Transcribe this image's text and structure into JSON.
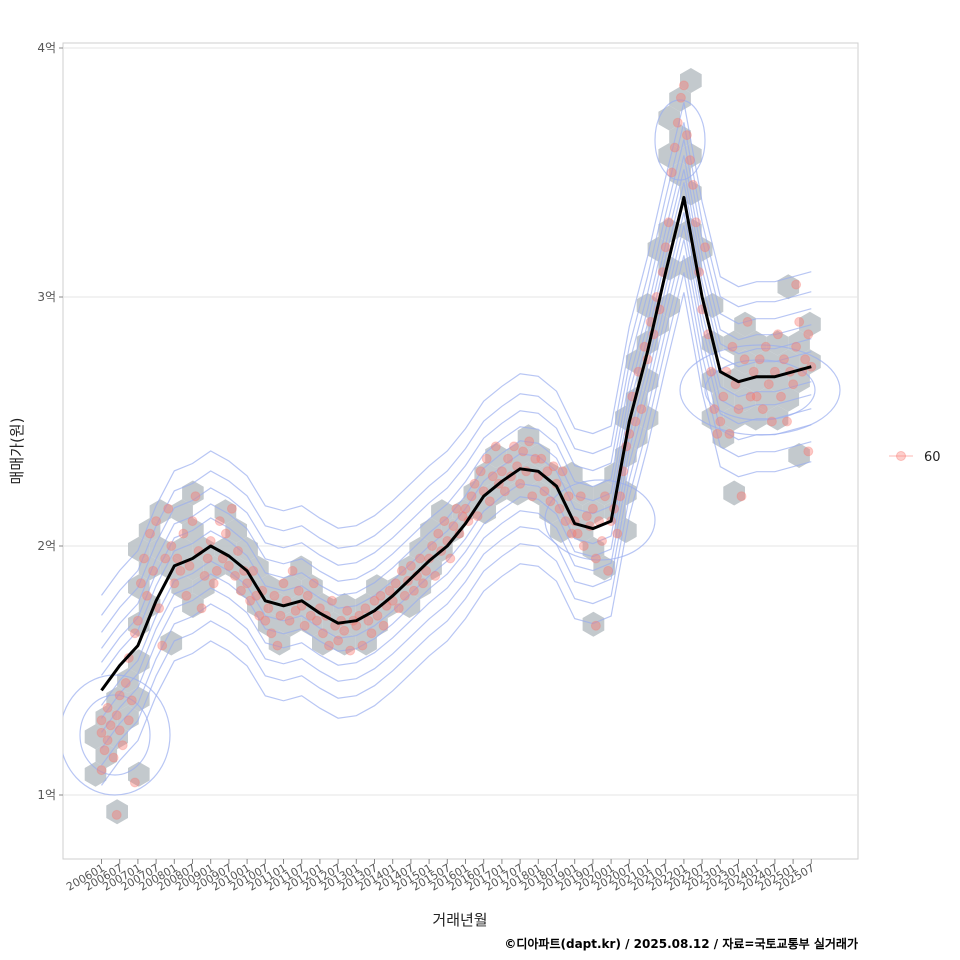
{
  "chart_data": {
    "type": "scatter",
    "xlabel": "거래년월",
    "ylabel": "매매가(원)",
    "caption": "©디아파트(dapt.kr) / 2025.08.12 / 자료=국토교통부 실거래가",
    "ylim": [
      0.75,
      4.05
    ],
    "y_ticks": [
      {
        "value": 1,
        "label": "1억"
      },
      {
        "value": 2,
        "label": "2억"
      },
      {
        "value": 3,
        "label": "3억"
      },
      {
        "value": 4,
        "label": "4억"
      }
    ],
    "x_ticks": [
      "200601",
      "200607",
      "200701",
      "200707",
      "200801",
      "200807",
      "200901",
      "200907",
      "201001",
      "201007",
      "201101",
      "201107",
      "201201",
      "201207",
      "201301",
      "201307",
      "201401",
      "201407",
      "201501",
      "201507",
      "201601",
      "201607",
      "201701",
      "201707",
      "201801",
      "201807",
      "201901",
      "201907",
      "202001",
      "202007",
      "202101",
      "202107",
      "202201",
      "202207",
      "202301",
      "202307",
      "202401",
      "202407",
      "202501",
      "202507"
    ],
    "legend": {
      "position": "right",
      "entries": [
        {
          "label": "60",
          "color": "#f8766d"
        }
      ]
    },
    "grid": true,
    "colors": {
      "points": "#f8766d",
      "hex": "#b8bfc4",
      "contour": "#9aaef0",
      "trend": "#000000"
    },
    "trend": [
      {
        "x": "200601",
        "y": 1.42
      },
      {
        "x": "200607",
        "y": 1.52
      },
      {
        "x": "200701",
        "y": 1.6
      },
      {
        "x": "200707",
        "y": 1.78
      },
      {
        "x": "200801",
        "y": 1.92
      },
      {
        "x": "200807",
        "y": 1.95
      },
      {
        "x": "200901",
        "y": 2.0
      },
      {
        "x": "200907",
        "y": 1.96
      },
      {
        "x": "201001",
        "y": 1.9
      },
      {
        "x": "201007",
        "y": 1.78
      },
      {
        "x": "201101",
        "y": 1.76
      },
      {
        "x": "201107",
        "y": 1.78
      },
      {
        "x": "201201",
        "y": 1.73
      },
      {
        "x": "201207",
        "y": 1.69
      },
      {
        "x": "201301",
        "y": 1.7
      },
      {
        "x": "201307",
        "y": 1.74
      },
      {
        "x": "201401",
        "y": 1.8
      },
      {
        "x": "201407",
        "y": 1.87
      },
      {
        "x": "201501",
        "y": 1.94
      },
      {
        "x": "201507",
        "y": 2.0
      },
      {
        "x": "201601",
        "y": 2.09
      },
      {
        "x": "201607",
        "y": 2.2
      },
      {
        "x": "201701",
        "y": 2.26
      },
      {
        "x": "201707",
        "y": 2.31
      },
      {
        "x": "201801",
        "y": 2.3
      },
      {
        "x": "201807",
        "y": 2.24
      },
      {
        "x": "201901",
        "y": 2.09
      },
      {
        "x": "201907",
        "y": 2.07
      },
      {
        "x": "202001",
        "y": 2.1
      },
      {
        "x": "202007",
        "y": 2.5
      },
      {
        "x": "202101",
        "y": 2.78
      },
      {
        "x": "202107",
        "y": 3.1
      },
      {
        "x": "202201",
        "y": 3.4
      },
      {
        "x": "202207",
        "y": 3.0
      },
      {
        "x": "202301",
        "y": 2.7
      },
      {
        "x": "202307",
        "y": 2.66
      },
      {
        "x": "202401",
        "y": 2.68
      },
      {
        "x": "202407",
        "y": 2.68
      },
      {
        "x": "202501",
        "y": 2.7
      },
      {
        "x": "202507",
        "y": 2.72
      }
    ],
    "points": [
      [
        "200601",
        1.1
      ],
      [
        "200601",
        1.25
      ],
      [
        "200601",
        1.3
      ],
      [
        "200602",
        1.18
      ],
      [
        "200603",
        1.22
      ],
      [
        "200603",
        1.35
      ],
      [
        "200604",
        1.28
      ],
      [
        "200605",
        1.15
      ],
      [
        "200606",
        1.32
      ],
      [
        "200607",
        1.26
      ],
      [
        "200607",
        1.4
      ],
      [
        "200608",
        1.2
      ],
      [
        "200609",
        1.45
      ],
      [
        "200610",
        1.3
      ],
      [
        "200610",
        1.55
      ],
      [
        "200611",
        1.38
      ],
      [
        "200612",
        1.65
      ],
      [
        "200612",
        1.05
      ],
      [
        "200606",
        0.92
      ],
      [
        "200701",
        1.7
      ],
      [
        "200702",
        1.85
      ],
      [
        "200703",
        1.95
      ],
      [
        "200704",
        1.8
      ],
      [
        "200705",
        2.05
      ],
      [
        "200706",
        1.9
      ],
      [
        "200707",
        2.1
      ],
      [
        "200708",
        1.75
      ],
      [
        "200709",
        1.6
      ],
      [
        "200710",
        1.95
      ],
      [
        "200711",
        2.15
      ],
      [
        "200712",
        2.0
      ],
      [
        "200801",
        1.85
      ],
      [
        "200802",
        1.95
      ],
      [
        "200803",
        1.9
      ],
      [
        "200804",
        2.05
      ],
      [
        "200805",
        1.8
      ],
      [
        "200806",
        1.92
      ],
      [
        "200807",
        2.1
      ],
      [
        "200808",
        2.2
      ],
      [
        "200809",
        1.98
      ],
      [
        "200810",
        1.75
      ],
      [
        "200811",
        1.88
      ],
      [
        "200812",
        1.95
      ],
      [
        "200901",
        2.02
      ],
      [
        "200902",
        1.85
      ],
      [
        "200903",
        1.9
      ],
      [
        "200904",
        2.1
      ],
      [
        "200905",
        1.95
      ],
      [
        "200906",
        2.05
      ],
      [
        "200907",
        1.92
      ],
      [
        "200908",
        2.15
      ],
      [
        "200909",
        1.88
      ],
      [
        "200910",
        1.98
      ],
      [
        "200911",
        1.82
      ],
      [
        "200912",
        1.9
      ],
      [
        "201001",
        1.85
      ],
      [
        "201002",
        1.78
      ],
      [
        "201003",
        1.9
      ],
      [
        "201004",
        1.8
      ],
      [
        "201005",
        1.72
      ],
      [
        "201006",
        1.82
      ],
      [
        "201007",
        1.7
      ],
      [
        "201008",
        1.75
      ],
      [
        "201009",
        1.65
      ],
      [
        "201010",
        1.8
      ],
      [
        "201011",
        1.6
      ],
      [
        "201012",
        1.72
      ],
      [
        "201101",
        1.85
      ],
      [
        "201102",
        1.78
      ],
      [
        "201103",
        1.7
      ],
      [
        "201104",
        1.9
      ],
      [
        "201105",
        1.74
      ],
      [
        "201106",
        1.82
      ],
      [
        "201107",
        1.76
      ],
      [
        "201108",
        1.68
      ],
      [
        "201109",
        1.8
      ],
      [
        "201110",
        1.72
      ],
      [
        "201111",
        1.85
      ],
      [
        "201112",
        1.7
      ],
      [
        "201201",
        1.75
      ],
      [
        "201202",
        1.65
      ],
      [
        "201203",
        1.72
      ],
      [
        "201204",
        1.6
      ],
      [
        "201205",
        1.78
      ],
      [
        "201206",
        1.68
      ],
      [
        "201207",
        1.62
      ],
      [
        "201208",
        1.7
      ],
      [
        "201209",
        1.66
      ],
      [
        "201210",
        1.74
      ],
      [
        "201211",
        1.58
      ],
      [
        "201212",
        1.7
      ],
      [
        "201301",
        1.68
      ],
      [
        "201302",
        1.72
      ],
      [
        "201303",
        1.6
      ],
      [
        "201304",
        1.75
      ],
      [
        "201305",
        1.7
      ],
      [
        "201306",
        1.65
      ],
      [
        "201307",
        1.78
      ],
      [
        "201308",
        1.72
      ],
      [
        "201309",
        1.8
      ],
      [
        "201310",
        1.68
      ],
      [
        "201311",
        1.76
      ],
      [
        "201312",
        1.82
      ],
      [
        "201401",
        1.78
      ],
      [
        "201402",
        1.85
      ],
      [
        "201403",
        1.75
      ],
      [
        "201404",
        1.9
      ],
      [
        "201405",
        1.8
      ],
      [
        "201406",
        1.86
      ],
      [
        "201407",
        1.92
      ],
      [
        "201408",
        1.82
      ],
      [
        "201409",
        1.88
      ],
      [
        "201410",
        1.95
      ],
      [
        "201411",
        1.85
      ],
      [
        "201412",
        1.9
      ],
      [
        "201501",
        1.95
      ],
      [
        "201502",
        2.0
      ],
      [
        "201503",
        1.88
      ],
      [
        "201504",
        2.05
      ],
      [
        "201505",
        1.98
      ],
      [
        "201506",
        2.1
      ],
      [
        "201507",
        2.02
      ],
      [
        "201508",
        1.95
      ],
      [
        "201509",
        2.08
      ],
      [
        "201510",
        2.15
      ],
      [
        "201511",
        2.05
      ],
      [
        "201512",
        2.12
      ],
      [
        "201601",
        2.15
      ],
      [
        "201602",
        2.1
      ],
      [
        "201603",
        2.2
      ],
      [
        "201604",
        2.25
      ],
      [
        "201605",
        2.12
      ],
      [
        "201606",
        2.3
      ],
      [
        "201607",
        2.22
      ],
      [
        "201608",
        2.35
      ],
      [
        "201609",
        2.18
      ],
      [
        "201610",
        2.28
      ],
      [
        "201611",
        2.4
      ],
      [
        "201612",
        2.25
      ],
      [
        "201701",
        2.3
      ],
      [
        "201702",
        2.22
      ],
      [
        "201703",
        2.35
      ],
      [
        "201704",
        2.28
      ],
      [
        "201705",
        2.4
      ],
      [
        "201706",
        2.32
      ],
      [
        "201707",
        2.25
      ],
      [
        "201708",
        2.38
      ],
      [
        "201709",
        2.3
      ],
      [
        "201710",
        2.42
      ],
      [
        "201711",
        2.2
      ],
      [
        "201712",
        2.35
      ],
      [
        "201801",
        2.28
      ],
      [
        "201802",
        2.35
      ],
      [
        "201803",
        2.22
      ],
      [
        "201804",
        2.3
      ],
      [
        "201805",
        2.18
      ],
      [
        "201806",
        2.32
      ],
      [
        "201807",
        2.25
      ],
      [
        "201808",
        2.15
      ],
      [
        "201809",
        2.3
      ],
      [
        "201810",
        2.1
      ],
      [
        "201811",
        2.2
      ],
      [
        "201812",
        2.05
      ],
      [
        "201901",
        2.1
      ],
      [
        "201902",
        2.05
      ],
      [
        "201903",
        2.2
      ],
      [
        "201904",
        2.0
      ],
      [
        "201905",
        2.12
      ],
      [
        "201906",
        2.08
      ],
      [
        "201907",
        2.15
      ],
      [
        "201908",
        1.95
      ],
      [
        "201909",
        2.1
      ],
      [
        "201910",
        2.02
      ],
      [
        "201911",
        2.2
      ],
      [
        "201912",
        1.9
      ],
      [
        "201908",
        1.68
      ],
      [
        "202001",
        2.1
      ],
      [
        "202002",
        2.15
      ],
      [
        "202003",
        2.05
      ],
      [
        "202004",
        2.2
      ],
      [
        "202005",
        2.3
      ],
      [
        "202006",
        2.4
      ],
      [
        "202007",
        2.45
      ],
      [
        "202008",
        2.6
      ],
      [
        "202009",
        2.5
      ],
      [
        "202010",
        2.7
      ],
      [
        "202011",
        2.55
      ],
      [
        "202012",
        2.8
      ],
      [
        "202101",
        2.75
      ],
      [
        "202102",
        2.9
      ],
      [
        "202103",
        2.85
      ],
      [
        "202104",
        3.0
      ],
      [
        "202105",
        2.95
      ],
      [
        "202106",
        3.1
      ],
      [
        "202107",
        3.2
      ],
      [
        "202108",
        3.3
      ],
      [
        "202109",
        3.5
      ],
      [
        "202110",
        3.6
      ],
      [
        "202111",
        3.7
      ],
      [
        "202112",
        3.8
      ],
      [
        "202201",
        3.85
      ],
      [
        "202202",
        3.65
      ],
      [
        "202203",
        3.55
      ],
      [
        "202204",
        3.45
      ],
      [
        "202205",
        3.3
      ],
      [
        "202206",
        3.1
      ],
      [
        "202207",
        2.95
      ],
      [
        "202208",
        3.2
      ],
      [
        "202209",
        2.85
      ],
      [
        "202210",
        2.7
      ],
      [
        "202211",
        2.55
      ],
      [
        "202212",
        2.45
      ],
      [
        "202301",
        2.5
      ],
      [
        "202302",
        2.6
      ],
      [
        "202303",
        2.7
      ],
      [
        "202304",
        2.45
      ],
      [
        "202305",
        2.8
      ],
      [
        "202306",
        2.65
      ],
      [
        "202307",
        2.55
      ],
      [
        "202308",
        2.2
      ],
      [
        "202309",
        2.75
      ],
      [
        "202310",
        2.9
      ],
      [
        "202311",
        2.6
      ],
      [
        "202312",
        2.7
      ],
      [
        "202401",
        2.6
      ],
      [
        "202402",
        2.75
      ],
      [
        "202403",
        2.55
      ],
      [
        "202404",
        2.8
      ],
      [
        "202405",
        2.65
      ],
      [
        "202406",
        2.5
      ],
      [
        "202407",
        2.7
      ],
      [
        "202408",
        2.85
      ],
      [
        "202409",
        2.6
      ],
      [
        "202410",
        2.75
      ],
      [
        "202411",
        2.5
      ],
      [
        "202412",
        2.7
      ],
      [
        "202501",
        2.65
      ],
      [
        "202502",
        2.8
      ],
      [
        "202503",
        2.9
      ],
      [
        "202504",
        2.7
      ],
      [
        "202505",
        2.75
      ],
      [
        "202506",
        2.85
      ],
      [
        "202507",
        2.72
      ],
      [
        "202506",
        2.38
      ],
      [
        "202502",
        3.05
      ]
    ]
  }
}
